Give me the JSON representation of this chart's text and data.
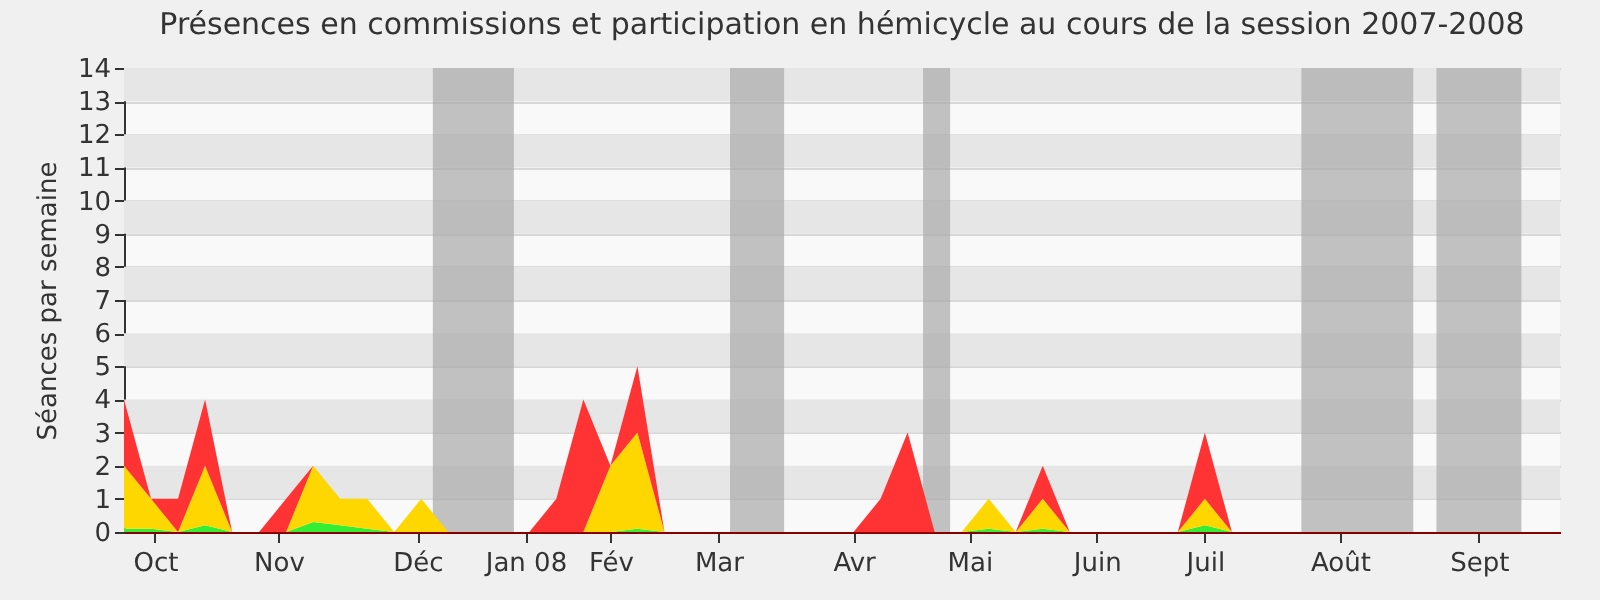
{
  "chart_data": {
    "type": "area",
    "stacked": true,
    "title": "Présences en commissions et participation en hémicycle au cours de la session 2007-2008",
    "ylabel": "Séances par semaine",
    "x": [
      "2007-10-01",
      "2007-10-08",
      "2007-10-15",
      "2007-10-22",
      "2007-10-29",
      "2007-11-05",
      "2007-11-12",
      "2007-11-19",
      "2007-11-26",
      "2007-12-03",
      "2007-12-10",
      "2007-12-17",
      "2007-12-24",
      "2007-12-31",
      "2008-01-07",
      "2008-01-14",
      "2008-01-21",
      "2008-01-28",
      "2008-02-04",
      "2008-02-11",
      "2008-02-18",
      "2008-02-25",
      "2008-03-03",
      "2008-03-10",
      "2008-03-17",
      "2008-03-24",
      "2008-03-31",
      "2008-04-07",
      "2008-04-14",
      "2008-04-21",
      "2008-04-28",
      "2008-05-05",
      "2008-05-12",
      "2008-05-19",
      "2008-05-26",
      "2008-06-02",
      "2008-06-09",
      "2008-06-16",
      "2008-06-23",
      "2008-06-30",
      "2008-07-07",
      "2008-07-14",
      "2008-07-21",
      "2008-07-28",
      "2008-08-04",
      "2008-08-11",
      "2008-08-18",
      "2008-08-25",
      "2008-09-01",
      "2008-09-08",
      "2008-09-15",
      "2008-09-22",
      "2008-09-29",
      "2008-10-06"
    ],
    "series": [
      {
        "color": "#33ee33",
        "values": [
          0.1,
          0.1,
          0,
          0.2,
          0,
          0,
          0,
          0.3,
          0.2,
          0.1,
          0,
          0,
          0,
          0,
          0,
          0,
          0,
          0,
          0,
          0.1,
          0,
          0,
          0,
          0,
          0,
          0,
          0,
          0,
          0,
          0,
          0,
          0,
          0.1,
          0,
          0.1,
          0,
          0,
          0,
          0,
          0,
          0.2,
          0,
          0,
          0,
          0,
          0,
          0,
          0,
          0,
          0,
          0,
          0,
          0,
          0
        ]
      },
      {
        "color": "#ffd700",
        "values": [
          1.9,
          0.9,
          0,
          1.8,
          0,
          0,
          0,
          1.7,
          0.8,
          0.9,
          0,
          1,
          0,
          0,
          0,
          0,
          0,
          0,
          2,
          2.9,
          0,
          0,
          0,
          0,
          0,
          0,
          0,
          0,
          0,
          0,
          0,
          0,
          0.9,
          0,
          0.9,
          0,
          0,
          0,
          0,
          0,
          0.8,
          0,
          0,
          0,
          0,
          0,
          0,
          0,
          0,
          0,
          0,
          0,
          0,
          0
        ]
      },
      {
        "color": "#ff3333",
        "values": [
          2,
          0,
          1,
          2,
          0,
          0,
          1,
          0,
          0,
          0,
          0,
          0,
          0,
          0,
          0,
          0,
          1,
          4,
          0,
          2,
          0,
          0,
          0,
          0,
          0,
          0,
          0,
          0,
          1,
          3,
          0,
          0,
          0,
          0,
          1,
          0,
          0,
          0,
          0,
          0,
          2,
          0,
          0,
          0,
          0,
          0,
          0,
          0,
          0,
          0,
          0,
          0,
          0,
          0
        ]
      }
    ],
    "xlim": [
      "2007-10-01",
      "2008-10-07"
    ],
    "xticks": [
      {
        "value": "2007-10-09",
        "label": "Oct"
      },
      {
        "value": "2007-11-10",
        "label": "Nov"
      },
      {
        "value": "2007-12-16",
        "label": "Déc"
      },
      {
        "value": "2008-01-13",
        "label": "Jan 08"
      },
      {
        "value": "2008-02-04",
        "label": "Fév"
      },
      {
        "value": "2008-03-03",
        "label": "Mar"
      },
      {
        "value": "2008-04-07",
        "label": "Avr"
      },
      {
        "value": "2008-05-07",
        "label": "Mai"
      },
      {
        "value": "2008-06-09",
        "label": "Juin"
      },
      {
        "value": "2008-07-07",
        "label": "Juil"
      },
      {
        "value": "2008-08-11",
        "label": "Août"
      },
      {
        "value": "2008-09-16",
        "label": "Sept"
      }
    ],
    "ylim": [
      0,
      14
    ],
    "yticks": [
      0,
      1,
      2,
      3,
      4,
      5,
      6,
      7,
      8,
      9,
      10,
      11,
      12,
      13,
      14
    ],
    "grid": "y",
    "bands": [
      {
        "axis": "x",
        "from": "2007-12-20",
        "to": "2008-01-10",
        "color": "#aaaaaa"
      },
      {
        "axis": "x",
        "from": "2008-03-06",
        "to": "2008-03-20",
        "color": "#aaaaaa"
      },
      {
        "axis": "x",
        "from": "2008-04-25",
        "to": "2008-05-02",
        "color": "#aaaaaa"
      },
      {
        "axis": "x",
        "from": "2008-08-01",
        "to": "2008-08-30",
        "color": "#aaaaaa"
      },
      {
        "axis": "x",
        "from": "2008-09-05",
        "to": "2008-09-27",
        "color": "#aaaaaa"
      }
    ]
  }
}
